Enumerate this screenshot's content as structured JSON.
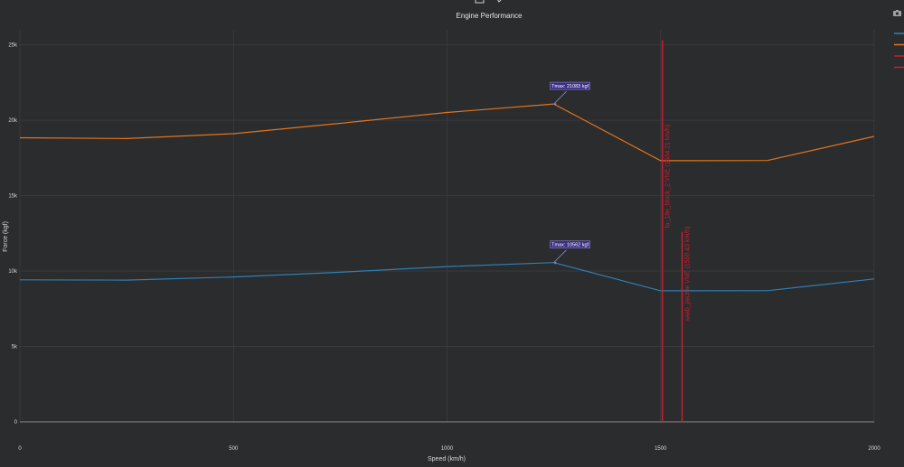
{
  "colors": {
    "background": "#2a2c2e",
    "grid": "#3b3d40",
    "axis_line": "#8a8c8e",
    "text": "#d9d9d9",
    "series_thrust": "#2f7fb5",
    "series_force2": "#e3741d",
    "vline": "#c8202e",
    "annotation_bg": "#3b2f86",
    "annotation_border": "#8a86c8"
  },
  "modebar": {
    "camera_icon": "camera-icon",
    "zoom_icon": "zoom-box-icon",
    "pan_icon": "pan-icon"
  },
  "chart_data": {
    "type": "line",
    "title": "Engine Performance",
    "xlabel": "Speed (km/h)",
    "ylabel": "Force (kgf)",
    "xlim": [
      0,
      2000
    ],
    "ylim": [
      0,
      26000
    ],
    "xticks": [
      {
        "value": 0,
        "label": "0"
      },
      {
        "value": 500,
        "label": "500"
      },
      {
        "value": 1000,
        "label": "1000"
      },
      {
        "value": 1500,
        "label": "1500"
      },
      {
        "value": 2000,
        "label": "2000"
      }
    ],
    "yticks": [
      {
        "value": 0,
        "label": "0"
      },
      {
        "value": 5000,
        "label": "5k"
      },
      {
        "value": 10000,
        "label": "10k"
      },
      {
        "value": 15000,
        "label": "15k"
      },
      {
        "value": 20000,
        "label": "20k"
      },
      {
        "value": 25000,
        "label": "25k"
      }
    ],
    "grid": true,
    "legend": "top-right",
    "series": [
      {
        "color": "#2f7fb5",
        "x": [
          0,
          250,
          500,
          750,
          1000,
          1250,
          1500,
          1750,
          2000
        ],
        "y": [
          9420,
          9400,
          9610,
          9920,
          10300,
          10562,
          8690,
          8700,
          9480
        ]
      },
      {
        "color": "#e3741d",
        "x": [
          0,
          250,
          500,
          750,
          1000,
          1250,
          1500,
          1750,
          2000
        ],
        "y": [
          18840,
          18790,
          19110,
          19800,
          20520,
          21083,
          17320,
          17330,
          18930
        ]
      }
    ],
    "vlines": [
      {
        "x": 1504.21,
        "y_top": 25300,
        "label": "fa_18e_block_2 VNE (1504.21 km/h)"
      },
      {
        "x": 1550.43,
        "y_top": 12600,
        "label": "saab_jas39e VNE (1550.43 km/h)"
      }
    ],
    "annotations": [
      {
        "x": 1250,
        "y": 21083,
        "text": "Tmax: 21083 kgf"
      },
      {
        "x": 1250,
        "y": 10562,
        "text": "Tmax: 10562 kgf"
      }
    ]
  }
}
